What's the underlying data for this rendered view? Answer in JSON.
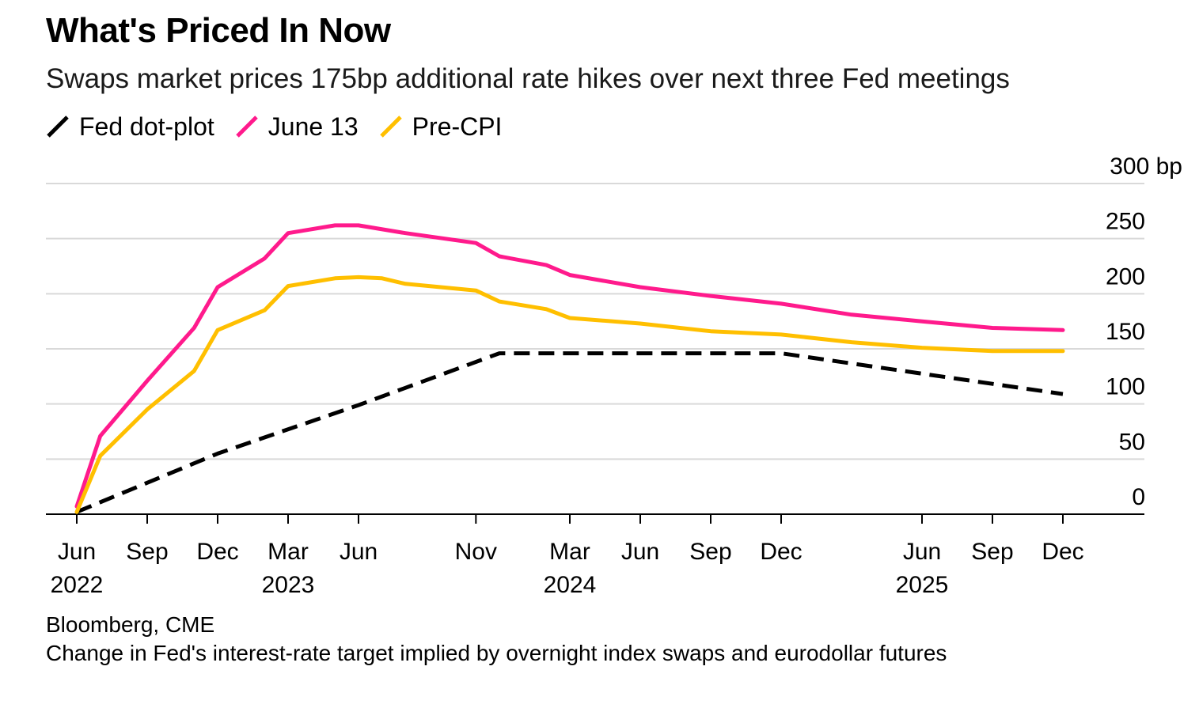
{
  "chart_data": {
    "type": "line",
    "title": "What's Priced In Now",
    "subtitle": "Swaps market prices 175bp additional rate hikes over next three Fed meetings",
    "ylabel": "",
    "xlabel": "",
    "ylim": [
      0,
      300
    ],
    "y_ticks": [
      0,
      50,
      100,
      150,
      200,
      250,
      300
    ],
    "y_unit": "bp",
    "x_ticks": [
      {
        "date": "2022-06",
        "label": "Jun",
        "year": "2022"
      },
      {
        "date": "2022-09",
        "label": "Sep",
        "year": ""
      },
      {
        "date": "2022-12",
        "label": "Dec",
        "year": ""
      },
      {
        "date": "2023-03",
        "label": "Mar",
        "year": "2023"
      },
      {
        "date": "2023-06",
        "label": "Jun",
        "year": ""
      },
      {
        "date": "2023-11",
        "label": "Nov",
        "year": ""
      },
      {
        "date": "2024-03",
        "label": "Mar",
        "year": "2024"
      },
      {
        "date": "2024-06",
        "label": "Jun",
        "year": ""
      },
      {
        "date": "2024-09",
        "label": "Sep",
        "year": ""
      },
      {
        "date": "2024-12",
        "label": "Dec",
        "year": ""
      },
      {
        "date": "2025-06",
        "label": "Jun",
        "year": "2025"
      },
      {
        "date": "2025-09",
        "label": "Sep",
        "year": ""
      },
      {
        "date": "2025-12",
        "label": "Dec",
        "year": ""
      }
    ],
    "grid": true,
    "legend_position": "top-left",
    "series": [
      {
        "name": "Fed dot-plot",
        "color": "#000000",
        "style": "dashed",
        "points": [
          {
            "x": "2022-06",
            "y": 2
          },
          {
            "x": "2022-12",
            "y": 55
          },
          {
            "x": "2023-06",
            "y": 99
          },
          {
            "x": "2023-12",
            "y": 146
          },
          {
            "x": "2024-12",
            "y": 146
          },
          {
            "x": "2025-12",
            "y": 109
          }
        ]
      },
      {
        "name": "June 13",
        "color": "#ff1a8c",
        "style": "solid",
        "points": [
          {
            "x": "2022-06",
            "y": 7
          },
          {
            "x": "2022-07",
            "y": 71
          },
          {
            "x": "2022-09",
            "y": 121
          },
          {
            "x": "2022-11",
            "y": 169
          },
          {
            "x": "2022-12",
            "y": 206
          },
          {
            "x": "2023-02",
            "y": 232
          },
          {
            "x": "2023-03",
            "y": 255
          },
          {
            "x": "2023-05",
            "y": 262
          },
          {
            "x": "2023-06",
            "y": 262
          },
          {
            "x": "2023-08",
            "y": 255
          },
          {
            "x": "2023-11",
            "y": 246
          },
          {
            "x": "2023-12",
            "y": 234
          },
          {
            "x": "2024-02",
            "y": 226
          },
          {
            "x": "2024-03",
            "y": 217
          },
          {
            "x": "2024-06",
            "y": 206
          },
          {
            "x": "2024-09",
            "y": 198
          },
          {
            "x": "2024-12",
            "y": 191
          },
          {
            "x": "2025-03",
            "y": 181
          },
          {
            "x": "2025-06",
            "y": 175
          },
          {
            "x": "2025-09",
            "y": 169
          },
          {
            "x": "2025-12",
            "y": 167
          }
        ]
      },
      {
        "name": "Pre-CPI",
        "color": "#ffbf00",
        "style": "solid",
        "points": [
          {
            "x": "2022-06",
            "y": 2
          },
          {
            "x": "2022-07",
            "y": 53
          },
          {
            "x": "2022-09",
            "y": 95
          },
          {
            "x": "2022-11",
            "y": 130
          },
          {
            "x": "2022-12",
            "y": 167
          },
          {
            "x": "2023-02",
            "y": 185
          },
          {
            "x": "2023-03",
            "y": 207
          },
          {
            "x": "2023-05",
            "y": 214
          },
          {
            "x": "2023-06",
            "y": 215
          },
          {
            "x": "2023-07",
            "y": 214
          },
          {
            "x": "2023-08",
            "y": 209
          },
          {
            "x": "2023-11",
            "y": 203
          },
          {
            "x": "2023-12",
            "y": 193
          },
          {
            "x": "2024-02",
            "y": 186
          },
          {
            "x": "2024-03",
            "y": 178
          },
          {
            "x": "2024-06",
            "y": 173
          },
          {
            "x": "2024-09",
            "y": 166
          },
          {
            "x": "2024-12",
            "y": 163
          },
          {
            "x": "2025-03",
            "y": 156
          },
          {
            "x": "2025-06",
            "y": 151
          },
          {
            "x": "2025-09",
            "y": 148
          },
          {
            "x": "2025-12",
            "y": 148
          }
        ]
      }
    ]
  },
  "source": "Bloomberg, CME",
  "footnote": "Change in Fed's interest-rate target implied by overnight index swaps and eurodollar futures"
}
